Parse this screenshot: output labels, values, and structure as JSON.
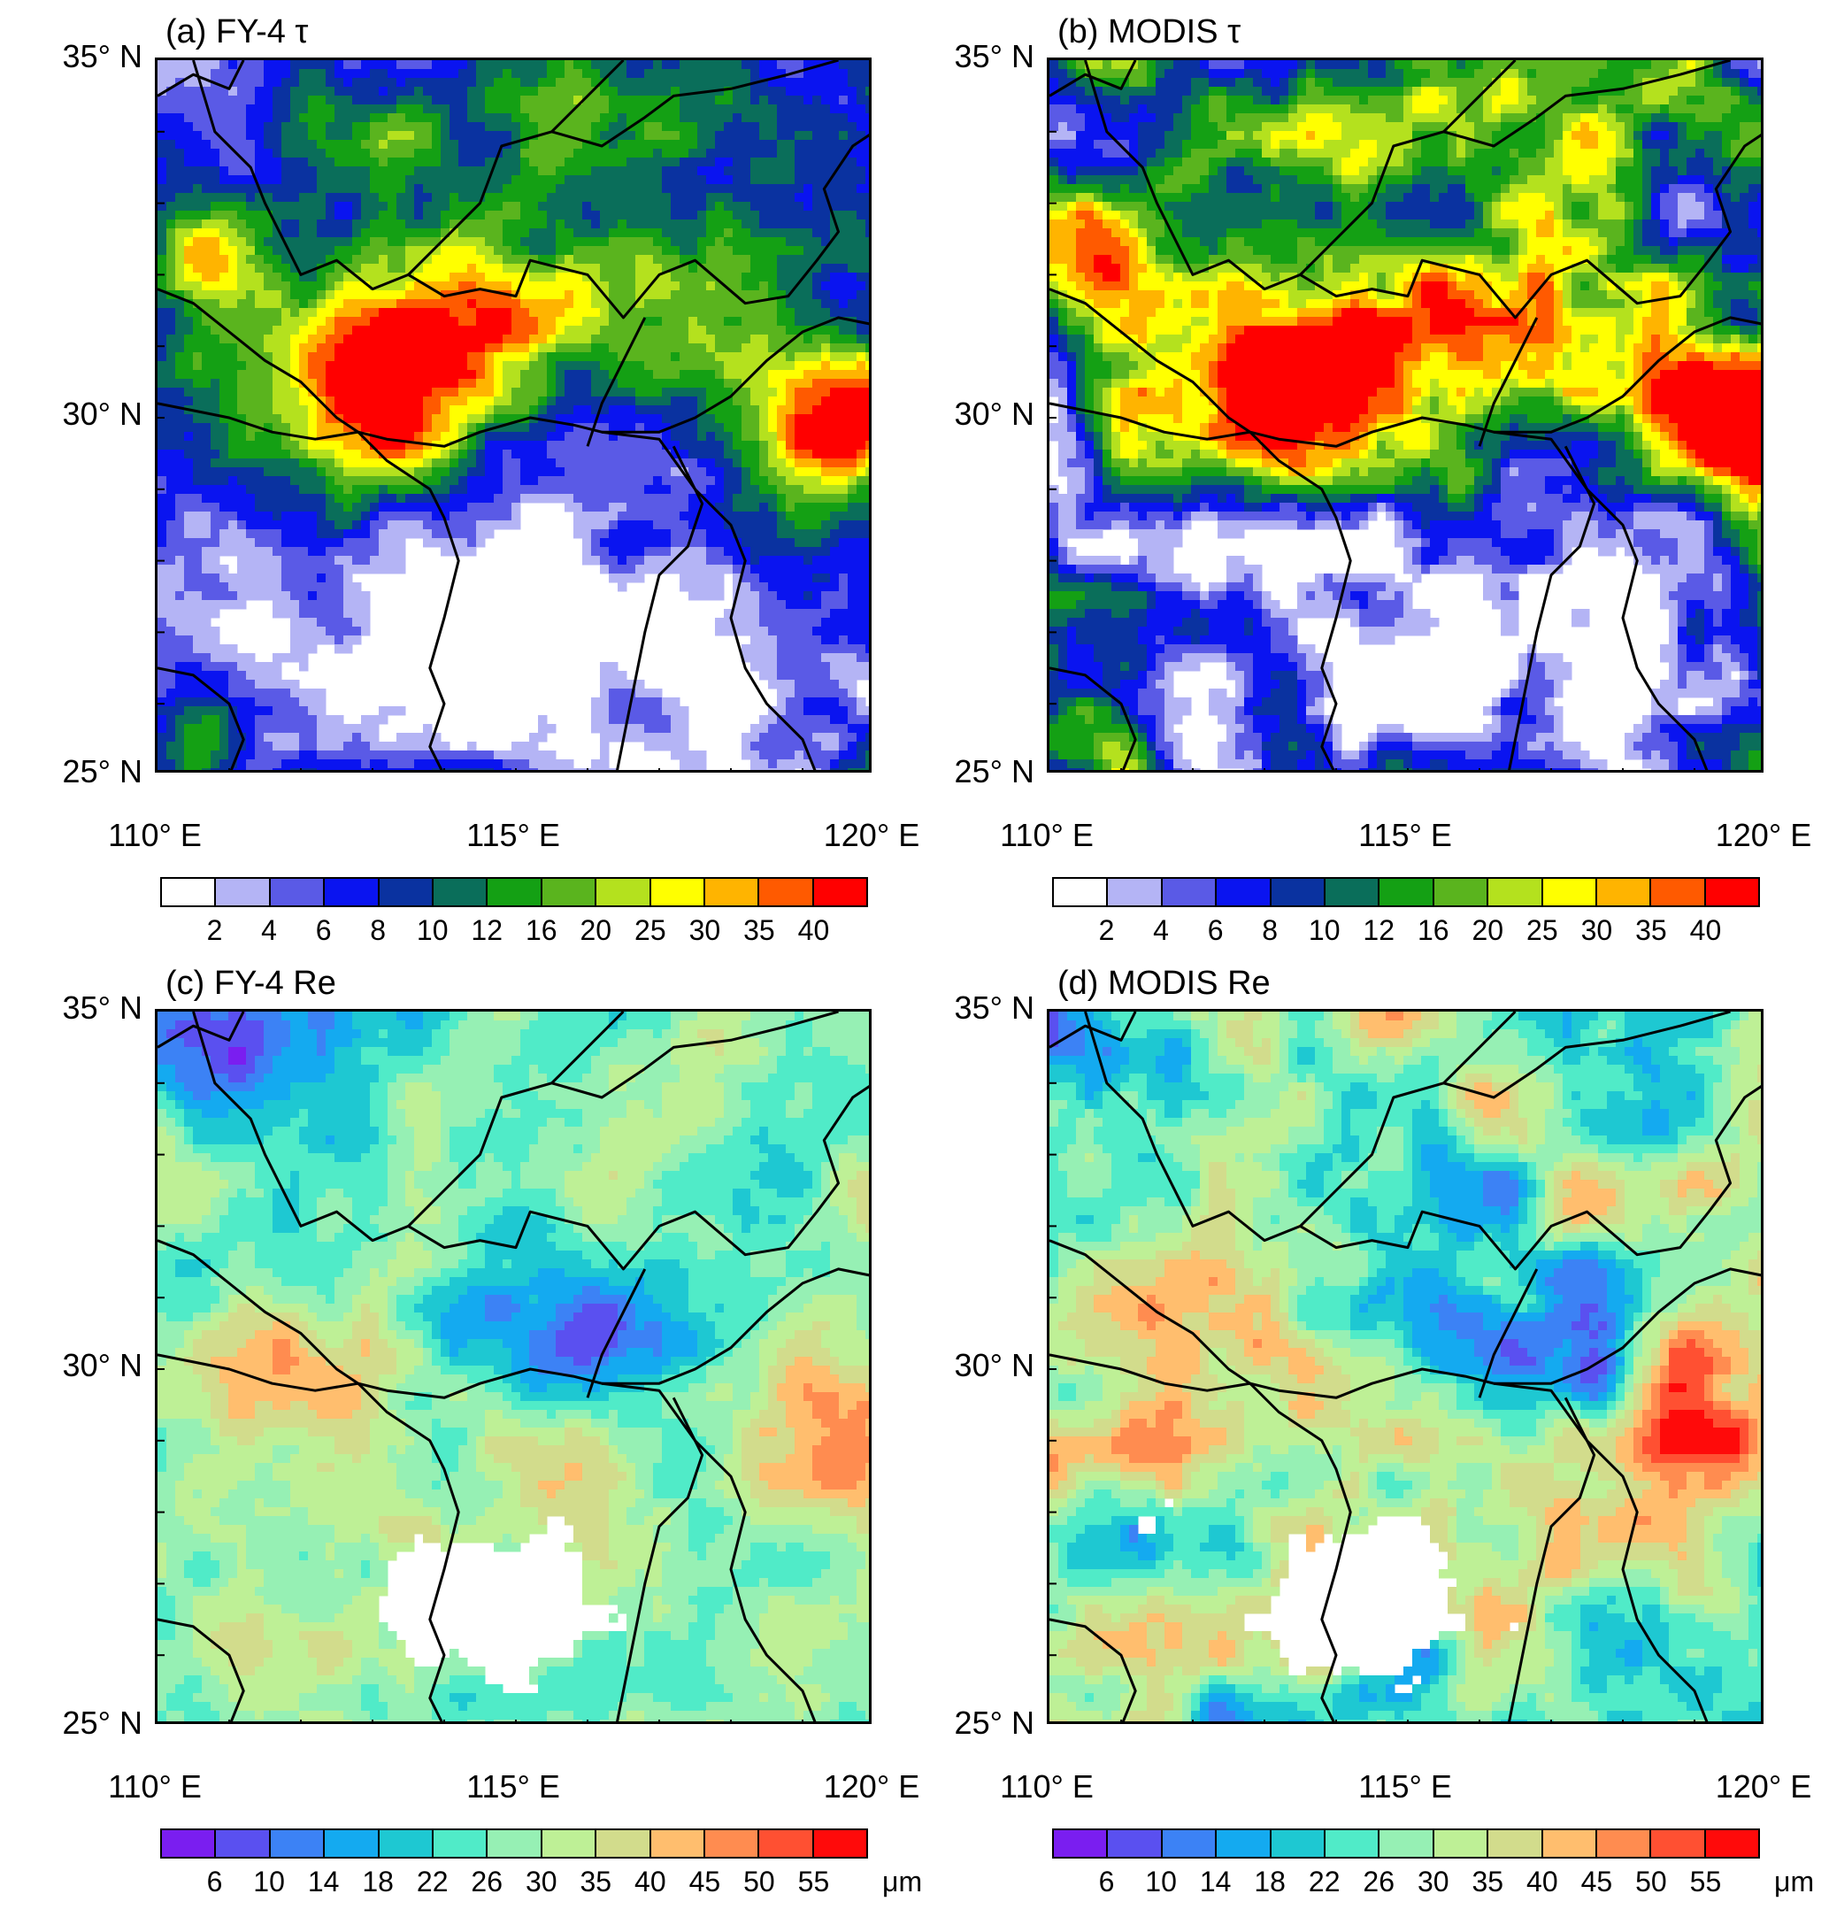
{
  "panels": [
    {
      "id": "a",
      "title": "(a) FY-4 τ",
      "field": "tau",
      "source": "fy4",
      "lat_labels": [
        "35° N",
        "30° N",
        "25° N"
      ],
      "lon_labels": [
        "110° E",
        "115° E",
        "120° E"
      ],
      "colorbar": {
        "colors": [
          "#ffffff",
          "#b4b4f5",
          "#5a5ae6",
          "#0a14f0",
          "#0a32a0",
          "#0a6e5a",
          "#14a014",
          "#5ab41e",
          "#b4e11e",
          "#ffff00",
          "#ffb400",
          "#ff5a00",
          "#ff0000"
        ],
        "labels": [
          "2",
          "4",
          "6",
          "8",
          "10",
          "12",
          "16",
          "20",
          "25",
          "30",
          "35",
          "40"
        ],
        "unit": ""
      }
    },
    {
      "id": "b",
      "title": "(b) MODIS τ",
      "field": "tau",
      "source": "modis",
      "lat_labels": [
        "35° N",
        "30° N",
        "25° N"
      ],
      "lon_labels": [
        "110° E",
        "115° E",
        "120° E"
      ],
      "colorbar": {
        "colors": [
          "#ffffff",
          "#b4b4f5",
          "#5a5ae6",
          "#0a14f0",
          "#0a32a0",
          "#0a6e5a",
          "#14a014",
          "#5ab41e",
          "#b4e11e",
          "#ffff00",
          "#ffb400",
          "#ff5a00",
          "#ff0000"
        ],
        "labels": [
          "2",
          "4",
          "6",
          "8",
          "10",
          "12",
          "16",
          "20",
          "25",
          "30",
          "35",
          "40"
        ],
        "unit": ""
      }
    },
    {
      "id": "c",
      "title": "(c) FY-4 Re",
      "field": "re",
      "source": "fy4",
      "lat_labels": [
        "35° N",
        "30° N",
        "25° N"
      ],
      "lon_labels": [
        "110° E",
        "115° E",
        "120° E"
      ],
      "colorbar": {
        "colors": [
          "#7a1ef0",
          "#5a50f0",
          "#3c82f5",
          "#14aaf0",
          "#1ec8d2",
          "#50ebc8",
          "#96f0b4",
          "#bef096",
          "#d2dc8c",
          "#ffbe6e",
          "#ff8c50",
          "#ff5032",
          "#ff0a0a"
        ],
        "labels": [
          "6",
          "10",
          "14",
          "18",
          "22",
          "26",
          "30",
          "35",
          "40",
          "45",
          "50",
          "55"
        ],
        "unit": "μm"
      }
    },
    {
      "id": "d",
      "title": "(d) MODIS Re",
      "field": "re",
      "source": "modis",
      "lat_labels": [
        "35° N",
        "30° N",
        "25° N"
      ],
      "lon_labels": [
        "110° E",
        "115° E",
        "120° E"
      ],
      "colorbar": {
        "colors": [
          "#7a1ef0",
          "#5a50f0",
          "#3c82f5",
          "#14aaf0",
          "#1ec8d2",
          "#50ebc8",
          "#96f0b4",
          "#bef096",
          "#d2dc8c",
          "#ffbe6e",
          "#ff8c50",
          "#ff5032",
          "#ff0a0a"
        ],
        "labels": [
          "6",
          "10",
          "14",
          "18",
          "22",
          "26",
          "30",
          "35",
          "40",
          "45",
          "50",
          "55"
        ],
        "unit": "μm"
      }
    }
  ],
  "map_extent": {
    "lon": [
      110,
      120
    ],
    "lat": [
      25,
      35
    ]
  }
}
